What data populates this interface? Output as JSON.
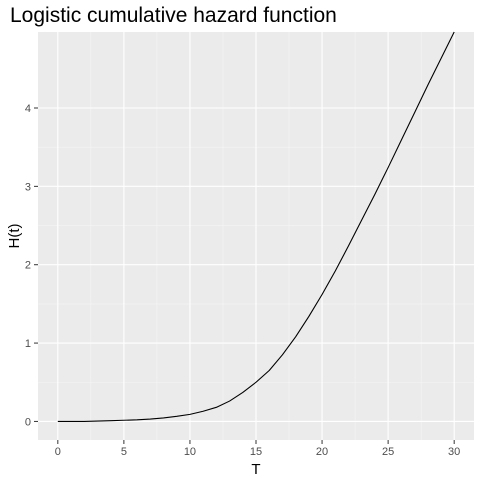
{
  "chart_data": {
    "type": "line",
    "title": "Logistic cumulative hazard function",
    "xlabel": "T",
    "ylabel": "H(t)",
    "xlim": [
      -1.5,
      31.5
    ],
    "ylim": [
      -0.237,
      4.97
    ],
    "x_ticks": [
      0,
      5,
      10,
      15,
      20,
      25,
      30
    ],
    "y_ticks": [
      0,
      1,
      2,
      3,
      4
    ],
    "grid": true,
    "legend": "none",
    "colors": {
      "panel_background": "#ebebeb",
      "grid_major": "#ffffff",
      "grid_minor": "#f5f5f5",
      "line": "#000000",
      "tick": "#333333"
    },
    "series": [
      {
        "x": [
          0,
          1,
          2,
          3,
          4,
          5,
          6,
          7,
          8,
          9,
          10,
          11,
          12,
          13,
          14,
          15,
          16,
          17,
          18,
          19,
          20,
          21,
          22,
          23,
          24,
          25,
          26,
          27,
          28,
          29,
          30
        ],
        "y": [
          0.0,
          0.0,
          0.0,
          0.005,
          0.01,
          0.015,
          0.02,
          0.03,
          0.045,
          0.065,
          0.09,
          0.13,
          0.18,
          0.26,
          0.37,
          0.5,
          0.65,
          0.85,
          1.08,
          1.34,
          1.62,
          1.92,
          2.24,
          2.57,
          2.9,
          3.24,
          3.59,
          3.94,
          4.29,
          4.63,
          4.97
        ]
      }
    ]
  }
}
